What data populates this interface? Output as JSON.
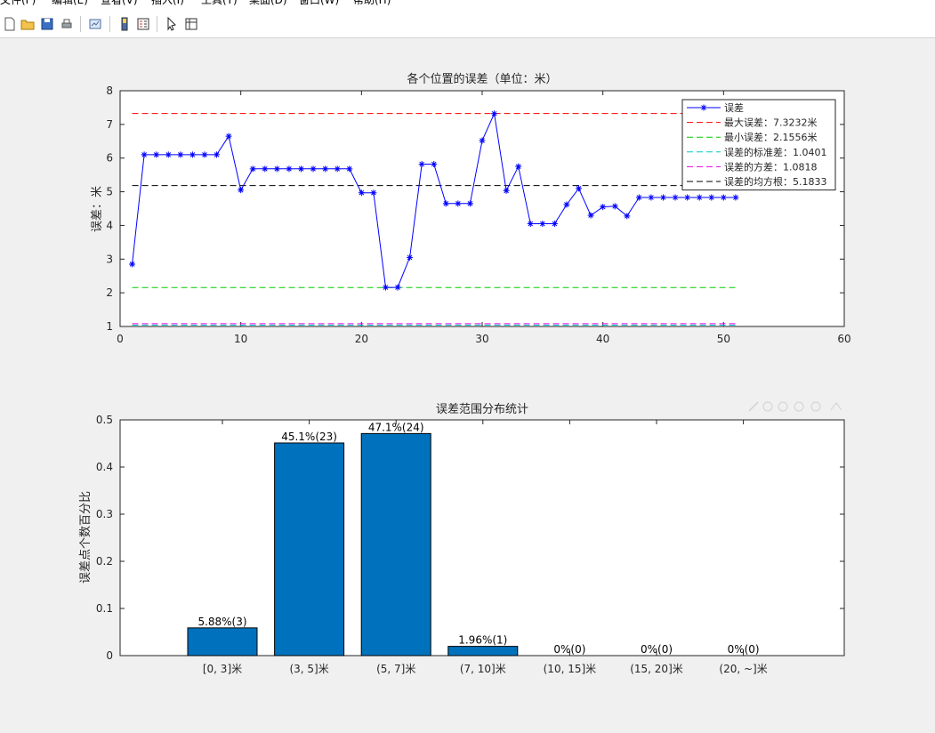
{
  "menu": {
    "items": [
      "文件(F)",
      "编辑(E)",
      "查看(V)",
      "插入(I)",
      "工具(T)",
      "桌面(D)",
      "窗口(W)",
      "帮助(H)"
    ]
  },
  "toolbar": {
    "buttons": [
      "new-figure-icon",
      "open-file-icon",
      "save-icon",
      "print-icon",
      "link-plot-icon",
      "colorbar-icon",
      "legend-icon",
      "pointer-icon",
      "property-inspector-icon"
    ]
  },
  "colors": {
    "series": "#0000ff",
    "max": "#ff0000",
    "min": "#00cc00",
    "std": "#00c8c8",
    "var": "#e600e6",
    "rms": "#000000",
    "bar": "#0072bd"
  },
  "chart_data": [
    {
      "type": "line",
      "title": "各个位置的误差（单位：米）",
      "xlabel": "",
      "ylabel": "误差：米",
      "xlim": [
        0,
        60
      ],
      "ylim": [
        1,
        8
      ],
      "xticks": [
        0,
        10,
        20,
        30,
        40,
        50,
        60
      ],
      "yticks": [
        1,
        2,
        3,
        4,
        5,
        6,
        7,
        8
      ],
      "grid": false,
      "legend_position": "top-right",
      "x": [
        1,
        2,
        3,
        4,
        5,
        6,
        7,
        8,
        9,
        10,
        11,
        12,
        13,
        14,
        15,
        16,
        17,
        18,
        19,
        20,
        21,
        22,
        23,
        24,
        25,
        26,
        27,
        28,
        29,
        30,
        31,
        32,
        33,
        34,
        35,
        36,
        37,
        38,
        39,
        40,
        41,
        42,
        43,
        44,
        45,
        46,
        47,
        48,
        49,
        50,
        51
      ],
      "series": [
        {
          "name": "误差",
          "style": "line-star",
          "values": [
            2.85,
            6.1,
            6.1,
            6.1,
            6.1,
            6.1,
            6.1,
            6.1,
            6.65,
            5.05,
            5.68,
            5.68,
            5.68,
            5.68,
            5.68,
            5.68,
            5.68,
            5.68,
            5.68,
            4.97,
            4.97,
            2.16,
            2.16,
            3.05,
            5.82,
            5.82,
            4.65,
            4.65,
            4.65,
            6.52,
            7.32,
            5.03,
            5.75,
            4.05,
            4.05,
            4.05,
            4.62,
            5.1,
            4.3,
            4.55,
            4.57,
            4.28,
            4.83,
            4.83,
            4.83,
            4.83,
            4.83,
            4.83,
            4.83,
            4.83,
            4.83
          ]
        }
      ],
      "reference_lines": [
        {
          "name": "最大误差：7.3232米",
          "value": 7.3232,
          "x_range": [
            1,
            51
          ],
          "color_key": "max"
        },
        {
          "name": "最小误差：2.1556米",
          "value": 2.1556,
          "x_range": [
            1,
            51
          ],
          "color_key": "min"
        },
        {
          "name": "误差的标准差：1.0401",
          "value": 1.0401,
          "x_range": [
            1,
            51
          ],
          "color_key": "std"
        },
        {
          "name": "误差的方差：1.0818",
          "value": 1.0818,
          "x_range": [
            1,
            51
          ],
          "color_key": "var"
        },
        {
          "name": "误差的均方根：5.1833",
          "value": 5.1833,
          "x_range": [
            1,
            51
          ],
          "color_key": "rms"
        }
      ]
    },
    {
      "type": "bar",
      "title": "误差范围分布统计",
      "xlabel": "",
      "ylabel": "误差点个数百分比",
      "ylim": [
        0,
        0.5
      ],
      "yticks": [
        0,
        0.1,
        0.2,
        0.3,
        0.4,
        0.5
      ],
      "categories": [
        "[0, 3]米",
        "(3, 5]米",
        "(5, 7]米",
        "(7, 10]米",
        "(10, 15]米",
        "(15, 20]米",
        "(20, ~]米"
      ],
      "values": [
        0.0588,
        0.451,
        0.471,
        0.0196,
        0,
        0,
        0
      ],
      "data_labels": [
        "5.88%(3)",
        "45.1%(23)",
        "47.1%(24)",
        "1.96%(1)",
        "0%(0)",
        "0%(0)",
        "0%(0)"
      ]
    }
  ]
}
